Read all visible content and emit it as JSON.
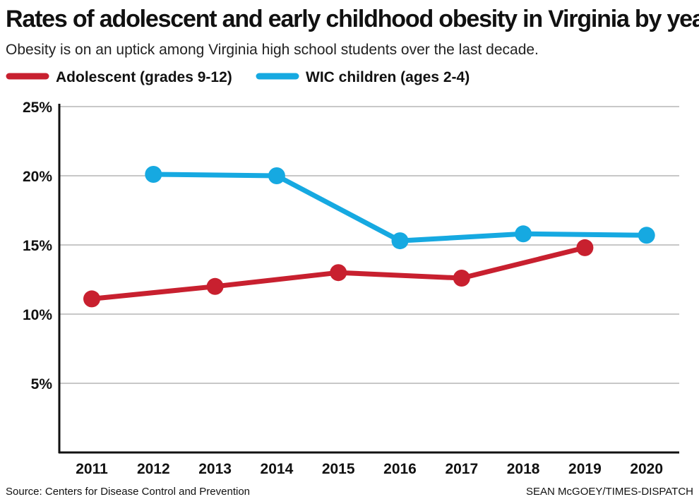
{
  "title": "Rates of adolescent and early childhood obesity in Virginia by year",
  "subtitle": "Obesity is on an uptick among Virginia high school students over the last decade.",
  "source": "Source: Centers for Disease Control and Prevention",
  "credit": "SEAN McGOEY/TIMES-DISPATCH",
  "colors": {
    "adolescent": "#c8202f",
    "wic": "#16a9e1",
    "grid": "#c8c8c8",
    "axis": "#111111"
  },
  "chart_data": {
    "type": "line",
    "title": "Rates of adolescent and early childhood obesity in Virginia by year",
    "subtitle": "Obesity is on an uptick among Virginia high school students over the last decade.",
    "xlabel": "",
    "ylabel": "",
    "categories": [
      "2011",
      "2012",
      "2013",
      "2014",
      "2015",
      "2016",
      "2017",
      "2018",
      "2019",
      "2020"
    ],
    "yticks": [
      5,
      10,
      15,
      20,
      25
    ],
    "ytick_labels": [
      "5%",
      "10%",
      "15%",
      "20%",
      "25%"
    ],
    "ylim": [
      0,
      25
    ],
    "grid": true,
    "legend_position": "top-left",
    "series": [
      {
        "name": "Adolescent (grades 9-12)",
        "color": "#c8202f",
        "values": [
          11.1,
          null,
          12.0,
          null,
          13.0,
          null,
          12.6,
          null,
          14.8,
          null
        ]
      },
      {
        "name": "WIC children (ages 2-4)",
        "color": "#16a9e1",
        "values": [
          null,
          20.1,
          null,
          20.0,
          null,
          15.3,
          null,
          15.8,
          null,
          15.7
        ]
      }
    ]
  }
}
